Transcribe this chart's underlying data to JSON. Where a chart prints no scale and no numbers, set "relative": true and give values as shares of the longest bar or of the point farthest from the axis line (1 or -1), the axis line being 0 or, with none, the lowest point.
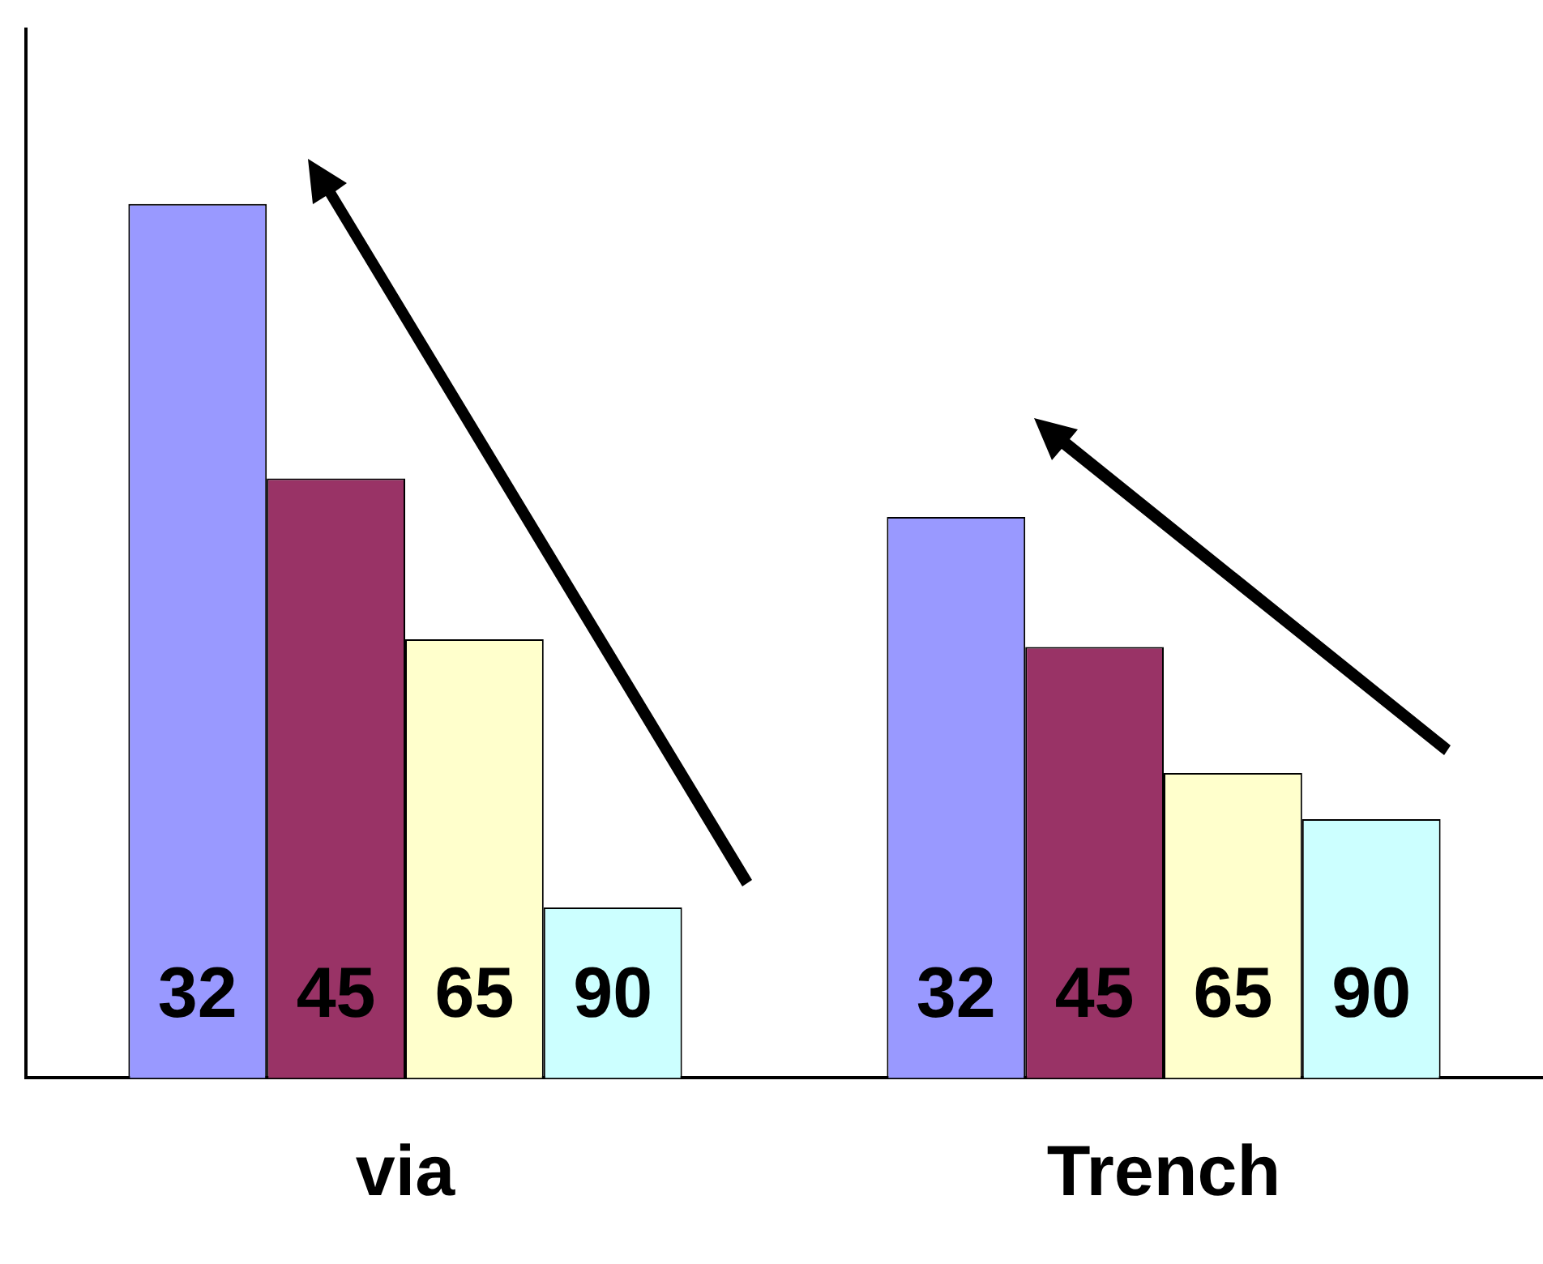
{
  "chart_data": {
    "type": "bar",
    "relative": true,
    "categories": [
      "via",
      "Trench"
    ],
    "series": [
      {
        "name": "32",
        "color": "#9999ff",
        "values": [
          1,
          0.642
        ]
      },
      {
        "name": "45",
        "color": "#993366",
        "values": [
          0.686,
          0.493
        ]
      },
      {
        "name": "65",
        "color": "#ffffcc",
        "values": [
          0.502,
          0.349
        ]
      },
      {
        "name": "90",
        "color": "#ccffff",
        "values": [
          0.195,
          0.296
        ]
      }
    ],
    "grid": false,
    "legend": false
  }
}
